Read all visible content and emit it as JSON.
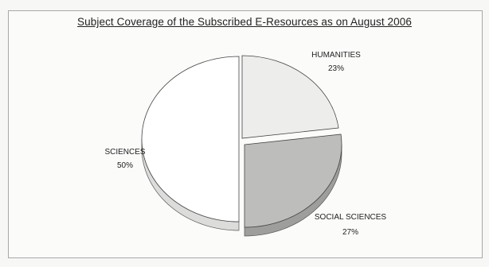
{
  "chart_data": {
    "type": "pie",
    "title": "Subject Coverage of the Subscribed E-Resources as on August 2006",
    "slices": [
      {
        "label": "HUMANITIES",
        "value": 23,
        "value_label": "23%",
        "color": "#ededeb"
      },
      {
        "label": "SOCIAL SCIENCES",
        "value": 27,
        "value_label": "27%",
        "color": "#bdbdbb"
      },
      {
        "label": "SCIENCES",
        "value": 50,
        "value_label": "50%",
        "color": "#ffffff"
      }
    ],
    "style": "3d-exploded",
    "legend": "none",
    "data_labels": "outside"
  }
}
